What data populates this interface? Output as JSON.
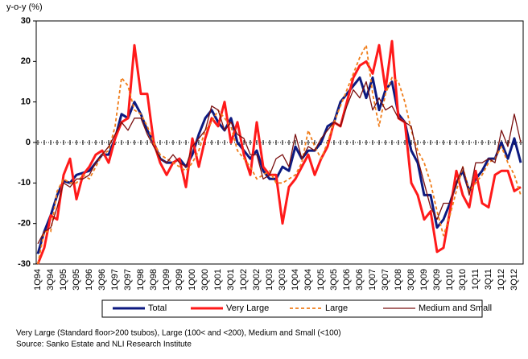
{
  "chart_data": {
    "type": "line",
    "y_label": "y-o-y (%)",
    "categories": [
      "1Q94",
      null,
      "3Q94",
      null,
      "1Q95",
      null,
      "3Q95",
      null,
      "1Q96",
      null,
      "3Q96",
      null,
      "1Q97",
      null,
      "3Q97",
      null,
      "1Q98",
      null,
      "3Q98",
      null,
      "1Q99",
      null,
      "3Q99",
      null,
      "1Q00",
      null,
      "3Q00",
      null,
      "1Q01",
      null,
      "3Q01",
      null,
      "1Q02",
      null,
      "3Q02",
      null,
      "1Q03",
      null,
      "3Q03",
      null,
      "1Q04",
      null,
      "3Q04",
      null,
      "1Q05",
      null,
      "3Q05",
      null,
      "1Q06",
      null,
      "3Q06",
      null,
      "1Q07",
      null,
      "3Q07",
      null,
      "1Q08",
      null,
      "3Q08",
      null,
      "1Q09",
      null,
      "3Q09",
      null,
      "1Q10",
      null,
      "3Q10",
      null,
      "1Q11",
      null,
      "3Q11",
      null,
      "1Q12",
      null,
      "3Q12",
      null
    ],
    "series": [
      {
        "name": "Total",
        "color": "#0d1a80",
        "style": "bold",
        "values": [
          -27.5,
          -22,
          -18,
          -13,
          -9.5,
          -10,
          -8,
          -7.5,
          -7,
          -5,
          -3,
          -3,
          1,
          7,
          6,
          10,
          7,
          3,
          0,
          -4,
          -5,
          -5,
          -4,
          -6,
          -3,
          2,
          6,
          8,
          5,
          3,
          6,
          0,
          -2,
          -4,
          -2,
          -7,
          -9,
          -9,
          -6,
          -7,
          -1,
          -4,
          -2,
          -2,
          0,
          4,
          5,
          10,
          12,
          14,
          16,
          11,
          16,
          8,
          13,
          15,
          7,
          5,
          -2,
          -5,
          -13,
          -13,
          -21,
          -19,
          -15,
          -10,
          -7,
          -12,
          -9,
          -7,
          -4,
          -4,
          0,
          -4,
          1,
          -5
        ]
      },
      {
        "name": "Very Large",
        "color": "#ff1a1a",
        "style": "bold",
        "values": [
          -30,
          -26,
          -18,
          -19,
          -8,
          -4,
          -14,
          -8,
          -6,
          -3,
          -2,
          -5,
          1,
          5,
          6,
          24,
          12,
          12,
          0,
          -5,
          -8,
          -5,
          -4,
          -11,
          1,
          -6,
          1,
          6,
          4,
          10,
          0,
          5,
          -3,
          -8,
          5,
          -6,
          -8,
          -8,
          -20,
          -11,
          -9,
          -6,
          -3,
          -8,
          -4,
          -1,
          5,
          4,
          10,
          16,
          19,
          20,
          17,
          24,
          13,
          25,
          6,
          5,
          -10,
          -13,
          -19,
          -17,
          -27,
          -26,
          -17,
          -7,
          -13,
          -16,
          -7,
          -15,
          -16,
          -8,
          -7,
          -7,
          -12,
          -11
        ]
      },
      {
        "name": "Large",
        "color": "#f07d1a",
        "style": "dashed",
        "values": [
          -30,
          -22,
          -22,
          -12,
          -9,
          -10,
          -10,
          -8,
          -9,
          -6,
          -3,
          -2,
          4,
          16,
          14,
          8,
          7,
          4,
          0,
          -3,
          -4,
          -5,
          -6,
          -7,
          -5,
          -2,
          3,
          5,
          8,
          6,
          4,
          -2,
          -4,
          -6,
          -9,
          -8,
          -7,
          -10,
          -10,
          -9,
          -8,
          -5,
          3,
          -1,
          -4,
          0,
          5,
          9,
          13,
          17,
          21,
          24,
          12,
          4,
          12,
          16,
          15,
          10,
          3,
          -2,
          -5,
          -10,
          -17,
          -23,
          -18,
          -12,
          -6,
          -12,
          -10,
          -8,
          -5,
          -4,
          -1,
          -5,
          -8,
          -13
        ]
      },
      {
        "name": "Medium and Small",
        "color": "#7a1010",
        "style": "thin",
        "values": [
          -25,
          -22,
          -21,
          -16,
          -10,
          -11,
          -9,
          -9,
          -8,
          -5,
          -3,
          -1,
          2,
          5,
          3,
          6,
          6,
          2,
          -1,
          -4,
          -5,
          -3,
          -5,
          -6,
          -1,
          1,
          3,
          9,
          8,
          3,
          5,
          2,
          1,
          -3,
          -3,
          -9,
          -8,
          -4,
          -3,
          -6,
          2,
          -4,
          -1,
          -2,
          1,
          3,
          5,
          4,
          9,
          13,
          11,
          15,
          8,
          11,
          8,
          9,
          6,
          5,
          4,
          -4,
          -10,
          -16,
          -19,
          -15,
          -15,
          -10,
          -6,
          -13,
          -5,
          -5,
          -4,
          -5,
          3,
          -1,
          7,
          0
        ]
      }
    ],
    "ylim": [
      -30,
      30
    ],
    "yticks": [
      -30,
      -20,
      -10,
      0,
      10,
      20,
      30
    ],
    "grid": false,
    "legend": "bottom",
    "notes": [
      "Very Large (Standard floor>200 tsubos), Large (100< and <200), Medium and Small (<100)",
      "Source: Sanko Estate and NLI Research Institute"
    ]
  }
}
